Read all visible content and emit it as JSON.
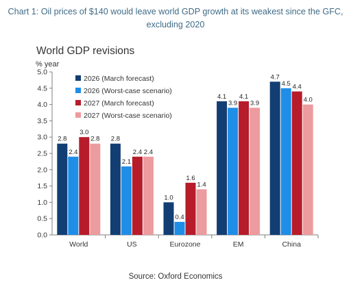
{
  "page": {
    "headline_line1": "Chart 1: Oil prices of $140 would leave world GDP growth at its weakest since the GFC,",
    "headline_line2": "excluding 2020",
    "source": "Source: Oxford Economics"
  },
  "chart_data": {
    "type": "bar",
    "title": "World GDP revisions",
    "ylabel": "% year",
    "xlabel": "",
    "categories": [
      "World",
      "US",
      "Eurozone",
      "EM",
      "China"
    ],
    "ylim": [
      0,
      5
    ],
    "yticks": [
      "0.0",
      "0.5",
      "1.0",
      "1.5",
      "2.0",
      "2.5",
      "3.0",
      "3.5",
      "4.0",
      "4.5",
      "5.0"
    ],
    "legend_position": "top-left",
    "grid": false,
    "series": [
      {
        "name": "2026 (March forecast)",
        "color": "#123e73",
        "values": [
          2.8,
          2.8,
          1.0,
          4.1,
          4.7
        ],
        "labels": [
          "2.8",
          "2.8",
          "1.0",
          "4.1",
          "4.7"
        ]
      },
      {
        "name": "2026 (Worst-case scenario)",
        "color": "#1f8ee6",
        "values": [
          2.4,
          2.1,
          0.4,
          3.9,
          4.5
        ],
        "labels": [
          "2.4",
          "2.1",
          "0.4",
          "3.9",
          "4.5"
        ]
      },
      {
        "name": "2027 (March forecast)",
        "color": "#b71c2b",
        "values": [
          3.0,
          2.4,
          1.6,
          4.1,
          4.4
        ],
        "labels": [
          "3.0",
          "2.4",
          "1.6",
          "4.1",
          "4.4"
        ]
      },
      {
        "name": "2027 (Worst-case scenario)",
        "color": "#ec9b9f",
        "values": [
          2.8,
          2.4,
          1.4,
          3.9,
          4.0
        ],
        "labels": [
          "2.8",
          "2.4",
          "1.4",
          "3.9",
          "4.0"
        ]
      }
    ]
  }
}
